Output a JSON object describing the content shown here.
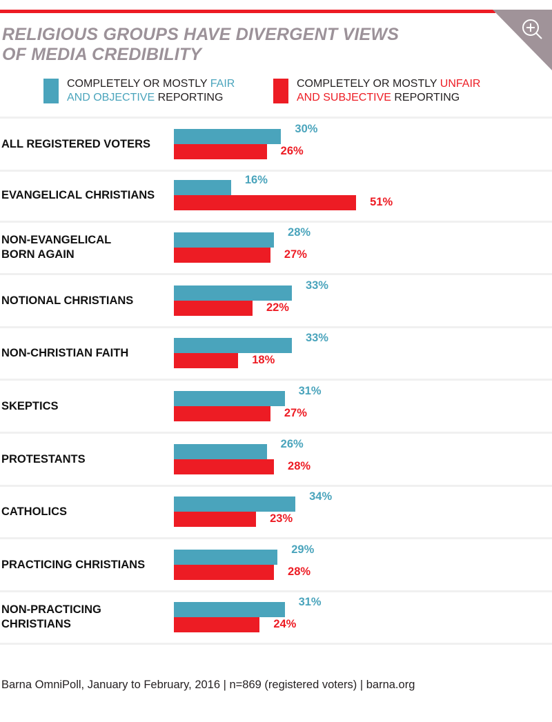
{
  "header": {
    "title_line1": "RELIGIOUS GROUPS HAVE DIVERGENT VIEWS",
    "title_line2": "OF MEDIA CREDIBILITY",
    "zoom_icon": "zoom-in-icon"
  },
  "legend": {
    "fair": {
      "prefix": "COMPLETELY OR MOSTLY ",
      "highlight1": "FAIR",
      "highlight2": "AND OBJECTIVE",
      "suffix": " REPORTING",
      "color": "#4aa4bc"
    },
    "unfair": {
      "prefix": "COMPLETELY OR MOSTLY ",
      "highlight1": "UNFAIR",
      "highlight2": "AND SUBJECTIVE",
      "suffix": " REPORTING",
      "color": "#ed1c24"
    }
  },
  "chart_data": {
    "type": "bar",
    "orientation": "horizontal",
    "title": "RELIGIOUS GROUPS HAVE DIVERGENT VIEWS OF MEDIA CREDIBILITY",
    "xlabel": "",
    "ylabel": "",
    "unit": "%",
    "grid": false,
    "legend_position": "top",
    "categories": [
      [
        "ALL REGISTERED VOTERS"
      ],
      [
        "EVANGELICAL CHRISTIANS"
      ],
      [
        "NON-EVANGELICAL",
        "BORN AGAIN"
      ],
      [
        "NOTIONAL CHRISTIANS"
      ],
      [
        "NON-CHRISTIAN FAITH"
      ],
      [
        "SKEPTICS"
      ],
      [
        "PROTESTANTS"
      ],
      [
        "CATHOLICS"
      ],
      [
        "PRACTICING CHRISTIANS"
      ],
      [
        "NON-PRACTICING",
        "CHRISTIANS"
      ]
    ],
    "series": [
      {
        "name": "Completely or mostly fair and objective reporting",
        "color": "#4aa4bc",
        "values": [
          30,
          16,
          28,
          33,
          33,
          31,
          26,
          34,
          29,
          31
        ]
      },
      {
        "name": "Completely or mostly unfair and subjective reporting",
        "color": "#ed1c24",
        "values": [
          26,
          51,
          27,
          22,
          18,
          27,
          28,
          23,
          28,
          24
        ]
      }
    ]
  },
  "footer": {
    "source": "Barna OmniPoll, January to February, 2016 | n=869 (registered voters) | barna.org"
  }
}
